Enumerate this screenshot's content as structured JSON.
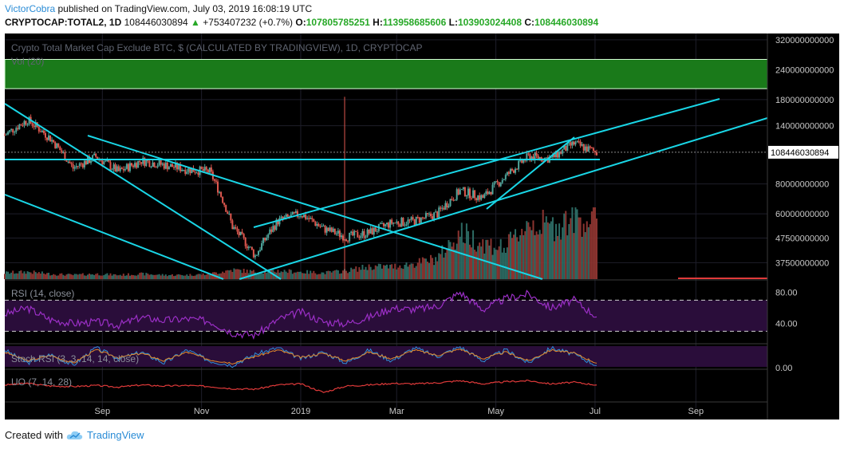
{
  "header": {
    "author": "VictorCobra",
    "published_text": "published on TradingView.com, July 03, 2019 16:08:19 UTC",
    "symbol_line": "CRYPTOCAP:TOTAL2, 1D",
    "last": "108446030894",
    "change_arrow": "▲",
    "change": "+753407232 (+0.7%)",
    "o_label": "O:",
    "o": "107805785251",
    "h_label": "H:",
    "h": "113958685606",
    "l_label": "L:",
    "l": "103903024408",
    "c_label": "C:",
    "c": "108446030894"
  },
  "footer": {
    "created_with": "Created with",
    "brand": "TradingView"
  },
  "colors": {
    "background": "#000000",
    "up": "#4fa59b",
    "down": "#e0584f",
    "trendline": "#19d6e6",
    "rsi": "#9b2fc6",
    "panel_band": "#2a0d3a",
    "uo": "#e03a3a",
    "ribbon": "#1a7a1a",
    "price_tag": "#ffffff"
  },
  "chart_data": [
    {
      "type": "line",
      "title": "Crypto Total Market Cap Exclude BTC, $ (CALCULATED BY TRADINGVIEW), 1D, CRYPTOCAP",
      "volume_label": "Vol (20)",
      "series_name": "",
      "x_ticks": [
        "Sep",
        "Nov",
        "2019",
        "Mar",
        "May",
        "Jul",
        "Sep"
      ],
      "y_ticks": [
        "320000000000",
        "240000000000",
        "180000000000",
        "140000000000",
        "108446030894",
        "80000000000",
        "60000000000",
        "47500000000",
        "37500000000"
      ],
      "current_price": "108446030894",
      "y_scale": "log",
      "ylim": [
        32000000000,
        340000000000
      ],
      "x": [
        "2018-07-03",
        "2018-07-17",
        "2018-07-31",
        "2018-08-14",
        "2018-08-28",
        "2018-09-11",
        "2018-09-25",
        "2018-10-09",
        "2018-10-23",
        "2018-11-06",
        "2018-11-20",
        "2018-12-04",
        "2018-12-18",
        "2019-01-01",
        "2019-01-15",
        "2019-01-29",
        "2019-02-12",
        "2019-02-26",
        "2019-03-12",
        "2019-03-26",
        "2019-04-09",
        "2019-04-23",
        "2019-05-07",
        "2019-05-21",
        "2019-06-04",
        "2019-06-18",
        "2019-07-02"
      ],
      "close": [
        128000000000,
        148000000000,
        124000000000,
        93000000000,
        104000000000,
        90000000000,
        100000000000,
        96000000000,
        92000000000,
        90000000000,
        53000000000,
        40000000000,
        56000000000,
        60000000000,
        52000000000,
        48000000000,
        50000000000,
        55000000000,
        56000000000,
        60000000000,
        75000000000,
        70000000000,
        86000000000,
        104000000000,
        102000000000,
        118000000000,
        108000000000
      ],
      "volume": [
        0.06,
        0.07,
        0.05,
        0.04,
        0.05,
        0.04,
        0.05,
        0.04,
        0.04,
        0.05,
        0.09,
        0.07,
        0.08,
        0.07,
        0.06,
        0.08,
        0.12,
        0.12,
        0.15,
        0.2,
        0.45,
        0.35,
        0.3,
        0.55,
        0.5,
        0.6,
        0.55
      ],
      "ribbon": {
        "top": 265000000000,
        "bottom": 200000000000
      }
    },
    {
      "type": "line",
      "title": "RSI (14, close)",
      "y_ticks": [
        "80.00",
        "40.00"
      ],
      "ylim": [
        15,
        95
      ],
      "bands": [
        70,
        30
      ],
      "values": [
        52,
        60,
        45,
        40,
        42,
        38,
        48,
        44,
        46,
        43,
        28,
        25,
        45,
        55,
        42,
        40,
        48,
        60,
        58,
        62,
        80,
        58,
        72,
        78,
        60,
        70,
        49
      ]
    },
    {
      "type": "line",
      "title": "Stoch RSI (3, 3, 14, 14, close)",
      "y_ticks": [
        "0.00"
      ],
      "ylim": [
        -5,
        105
      ],
      "k": [
        80,
        20,
        60,
        10,
        90,
        40,
        70,
        20,
        80,
        30,
        10,
        60,
        90,
        40,
        70,
        20,
        80,
        30,
        90,
        50,
        95,
        30,
        80,
        20,
        90,
        60,
        10
      ],
      "d": [
        70,
        30,
        55,
        20,
        80,
        45,
        65,
        30,
        70,
        35,
        20,
        50,
        80,
        45,
        65,
        30,
        70,
        40,
        80,
        55,
        85,
        40,
        70,
        30,
        80,
        65,
        20
      ]
    },
    {
      "type": "line",
      "title": "UO (7, 14, 28)",
      "ylim": [
        20,
        80
      ],
      "values": [
        52,
        55,
        50,
        49,
        51,
        48,
        52,
        50,
        51,
        49,
        45,
        44,
        52,
        54,
        38,
        50,
        52,
        55,
        54,
        56,
        60,
        54,
        58,
        60,
        54,
        57,
        52
      ]
    }
  ]
}
